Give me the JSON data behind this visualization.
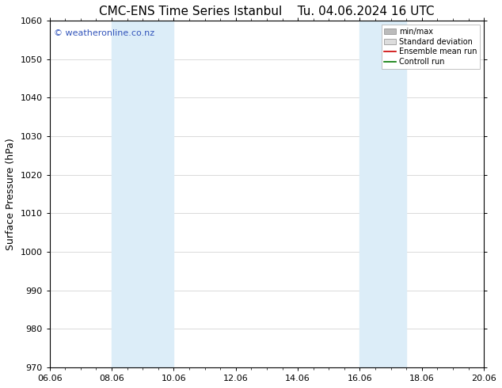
{
  "title_left": "CMC-ENS Time Series Istanbul",
  "title_right": "Tu. 04.06.2024 16 UTC",
  "ylabel": "Surface Pressure (hPa)",
  "ylim": [
    970,
    1060
  ],
  "yticks": [
    970,
    980,
    990,
    1000,
    1010,
    1020,
    1030,
    1040,
    1050,
    1060
  ],
  "xtick_labels": [
    "06.06",
    "08.06",
    "10.06",
    "12.06",
    "14.06",
    "16.06",
    "18.06",
    "20.06"
  ],
  "xtick_positions": [
    0,
    2,
    4,
    6,
    8,
    10,
    12,
    14
  ],
  "xlim": [
    0,
    14
  ],
  "shaded_regions": [
    {
      "x_start": 2,
      "x_end": 4,
      "color": "#dcedf8"
    },
    {
      "x_start": 10,
      "x_end": 11.5,
      "color": "#dcedf8"
    }
  ],
  "watermark_text": "© weatheronline.co.nz",
  "watermark_color": "#3355bb",
  "legend_entries": [
    {
      "label": "min/max",
      "color": "#bbbbbb",
      "style": "bar"
    },
    {
      "label": "Standard deviation",
      "color": "#dddddd",
      "style": "bar"
    },
    {
      "label": "Ensemble mean run",
      "color": "#cc0000",
      "style": "line"
    },
    {
      "label": "Controll run",
      "color": "#007700",
      "style": "line"
    }
  ],
  "background_color": "#ffffff",
  "grid_color": "#cccccc",
  "title_fontsize": 11,
  "tick_fontsize": 8,
  "ylabel_fontsize": 9,
  "watermark_fontsize": 8
}
